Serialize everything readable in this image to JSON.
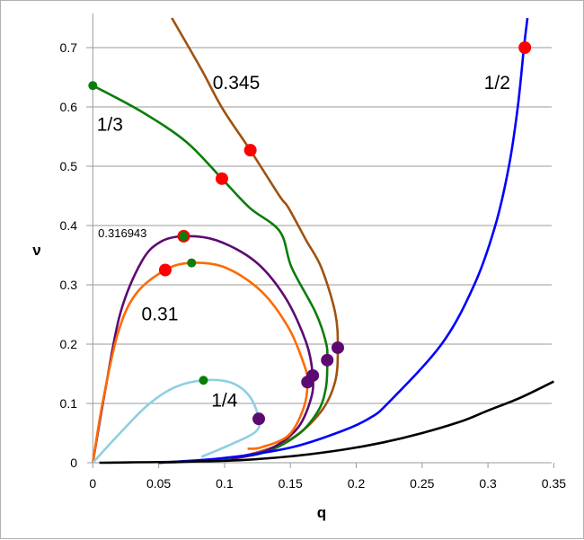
{
  "chart_data": {
    "type": "line",
    "title": "",
    "xlabel": "q",
    "ylabel": "ν",
    "xlim": [
      0,
      0.35
    ],
    "ylim": [
      0,
      0.75
    ],
    "xticks": [
      "0",
      "0.05",
      "0.1",
      "0.15",
      "0.2",
      "0.25",
      "0.3",
      "0.35"
    ],
    "yticks": [
      "0",
      "0.1",
      "0.2",
      "0.3",
      "0.4",
      "0.5",
      "0.6",
      "0.7"
    ],
    "grid": "horizontal",
    "series": [
      {
        "label": "0.345",
        "color": "#a0520f",
        "points": [
          [
            0.06,
            0.75
          ],
          [
            0.0825,
            0.663
          ],
          [
            0.0985,
            0.597
          ],
          [
            0.1196,
            0.527
          ],
          [
            0.1417,
            0.45
          ],
          [
            0.1485,
            0.43
          ],
          [
            0.162,
            0.375
          ],
          [
            0.1735,
            0.329
          ],
          [
            0.184,
            0.253
          ],
          [
            0.186,
            0.194
          ],
          [
            0.184,
            0.137
          ],
          [
            0.1735,
            0.087
          ],
          [
            0.151,
            0.041
          ],
          [
            0.119,
            0.014
          ],
          [
            0.083,
            0.003
          ],
          [
            0.05,
            0
          ]
        ]
      },
      {
        "label": "1/3",
        "color": "#0a7d0a",
        "points": [
          [
            0,
            0.636
          ],
          [
            0.037,
            0.592
          ],
          [
            0.071,
            0.541
          ],
          [
            0.098,
            0.479
          ],
          [
            0.119,
            0.43
          ],
          [
            0.142,
            0.39
          ],
          [
            0.151,
            0.329
          ],
          [
            0.169,
            0.254
          ],
          [
            0.177,
            0.203
          ],
          [
            0.178,
            0.173
          ],
          [
            0.177,
            0.127
          ],
          [
            0.171,
            0.087
          ],
          [
            0.155,
            0.046
          ],
          [
            0.128,
            0.016
          ],
          [
            0.087,
            0.004
          ],
          [
            0.05,
            0
          ]
        ]
      },
      {
        "label": "0.316943",
        "color": "#5c0a72",
        "points": [
          [
            0,
            0
          ],
          [
            0.0098,
            0.127
          ],
          [
            0.021,
            0.253
          ],
          [
            0.037,
            0.339
          ],
          [
            0.051,
            0.372
          ],
          [
            0.069,
            0.382
          ],
          [
            0.094,
            0.375
          ],
          [
            0.1235,
            0.339
          ],
          [
            0.146,
            0.279
          ],
          [
            0.162,
            0.203
          ],
          [
            0.167,
            0.147
          ],
          [
            0.1655,
            0.107
          ],
          [
            0.155,
            0.057
          ],
          [
            0.1326,
            0.021
          ],
          [
            0.105,
            0.006
          ]
        ]
      },
      {
        "label": "0.31",
        "color": "#ff6a00",
        "points": [
          [
            0,
            0
          ],
          [
            0.0075,
            0.102
          ],
          [
            0.019,
            0.218
          ],
          [
            0.0325,
            0.284
          ],
          [
            0.055,
            0.325
          ],
          [
            0.075,
            0.337
          ],
          [
            0.1007,
            0.329
          ],
          [
            0.128,
            0.289
          ],
          [
            0.1485,
            0.228
          ],
          [
            0.16,
            0.168
          ],
          [
            0.163,
            0.136
          ],
          [
            0.16,
            0.092
          ],
          [
            0.1485,
            0.046
          ],
          [
            0.128,
            0.026
          ],
          [
            0.1175,
            0.0235
          ]
        ]
      },
      {
        "label": "1/4",
        "color": "#8ecfe2",
        "points": [
          [
            0,
            0
          ],
          [
            0.019,
            0.046
          ],
          [
            0.0416,
            0.097
          ],
          [
            0.062,
            0.127
          ],
          [
            0.084,
            0.139
          ],
          [
            0.105,
            0.135
          ],
          [
            0.119,
            0.112
          ],
          [
            0.126,
            0.074
          ],
          [
            0.1235,
            0.052
          ],
          [
            0.105,
            0.031
          ],
          [
            0.0825,
            0.01
          ]
        ]
      },
      {
        "label": "1/2",
        "color": "#0000ff",
        "points": [
          [
            0.05,
            0
          ],
          [
            0.1,
            0.008
          ],
          [
            0.151,
            0.026
          ],
          [
            0.1898,
            0.054
          ],
          [
            0.21,
            0.075
          ],
          [
            0.2239,
            0.1
          ],
          [
            0.2648,
            0.2
          ],
          [
            0.2898,
            0.301
          ],
          [
            0.3057,
            0.401
          ],
          [
            0.316,
            0.501
          ],
          [
            0.3227,
            0.601
          ],
          [
            0.3273,
            0.7
          ],
          [
            0.33,
            0.75
          ]
        ]
      },
      {
        "label": "",
        "color": "#000000",
        "points": [
          [
            0.005,
            0
          ],
          [
            0.1,
            0.0032
          ],
          [
            0.15,
            0.0108
          ],
          [
            0.19,
            0.022
          ],
          [
            0.22,
            0.034
          ],
          [
            0.25,
            0.05
          ],
          [
            0.28,
            0.07
          ],
          [
            0.3,
            0.088
          ],
          [
            0.325,
            0.11
          ],
          [
            0.35,
            0.137
          ]
        ]
      }
    ],
    "markers": [
      {
        "q": 0.328,
        "v": 0.7,
        "color": "#ff0000",
        "size": "large"
      },
      {
        "q": 0.1196,
        "v": 0.527,
        "color": "#ff0000",
        "size": "large"
      },
      {
        "q": 0.098,
        "v": 0.479,
        "color": "#ff0000",
        "size": "large"
      },
      {
        "q": 0.0,
        "v": 0.636,
        "color": "#0a7d0a",
        "size": "small"
      },
      {
        "q": 0.069,
        "v": 0.382,
        "color": "#ff0000",
        "size": "large"
      },
      {
        "q": 0.069,
        "v": 0.382,
        "color": "#0a7d0a",
        "size": "small"
      },
      {
        "q": 0.055,
        "v": 0.325,
        "color": "#ff0000",
        "size": "large"
      },
      {
        "q": 0.075,
        "v": 0.337,
        "color": "#0a7d0a",
        "size": "small"
      },
      {
        "q": 0.084,
        "v": 0.139,
        "color": "#0a7d0a",
        "size": "small"
      },
      {
        "q": 0.126,
        "v": 0.074,
        "color": "#5c0a72",
        "size": "large"
      },
      {
        "q": 0.163,
        "v": 0.136,
        "color": "#5c0a72",
        "size": "large"
      },
      {
        "q": 0.167,
        "v": 0.147,
        "color": "#5c0a72",
        "size": "large"
      },
      {
        "q": 0.178,
        "v": 0.173,
        "color": "#5c0a72",
        "size": "large"
      },
      {
        "q": 0.186,
        "v": 0.194,
        "color": "#5c0a72",
        "size": "large"
      }
    ],
    "annotations": [
      {
        "text": "0.345",
        "q": 0.091,
        "v": 0.63
      },
      {
        "text": "1/3",
        "q": 0.003,
        "v": 0.56
      },
      {
        "text": "0.316943",
        "q": 0.004,
        "v": 0.38
      },
      {
        "text": "0.31",
        "q": 0.037,
        "v": 0.24
      },
      {
        "text": "1/4",
        "q": 0.09,
        "v": 0.095
      },
      {
        "text": "1/2",
        "q": 0.297,
        "v": 0.63
      }
    ]
  }
}
